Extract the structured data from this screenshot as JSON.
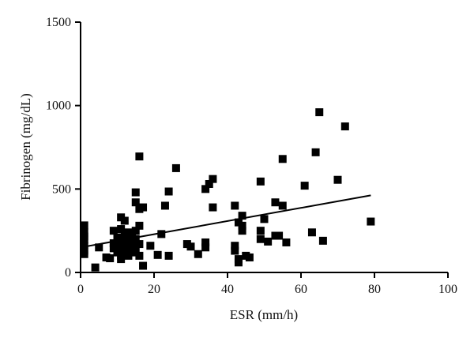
{
  "chart_data": {
    "type": "scatter",
    "title": "",
    "xlabel": "ESR (mm/h)",
    "ylabel": "Fibrinogen (mg/dL)",
    "xlim": [
      0,
      100
    ],
    "ylim": [
      0,
      1500
    ],
    "xticks": [
      0,
      20,
      40,
      60,
      80,
      100
    ],
    "yticks": [
      0,
      500,
      1000,
      1500
    ],
    "xtick_labels": [
      "0",
      "20",
      "40",
      "60",
      "80",
      "100"
    ],
    "ytick_labels": [
      "0",
      "500",
      "1000",
      "1500"
    ],
    "grid": false,
    "legend": "none",
    "marker": "square",
    "color": "#000000",
    "trendline": {
      "x": [
        0,
        79
      ],
      "y": [
        150,
        462
      ]
    },
    "points": [
      [
        1,
        282
      ],
      [
        1,
        240
      ],
      [
        1,
        215
      ],
      [
        1,
        195
      ],
      [
        1,
        160
      ],
      [
        1,
        130
      ],
      [
        1,
        110
      ],
      [
        4,
        30
      ],
      [
        5,
        150
      ],
      [
        7,
        90
      ],
      [
        8,
        85
      ],
      [
        9,
        250
      ],
      [
        9,
        175
      ],
      [
        9,
        145
      ],
      [
        10,
        210
      ],
      [
        10,
        165
      ],
      [
        10,
        120
      ],
      [
        11,
        330
      ],
      [
        11,
        260
      ],
      [
        11,
        200
      ],
      [
        11,
        130
      ],
      [
        11,
        100
      ],
      [
        11,
        80
      ],
      [
        12,
        310
      ],
      [
        12,
        220
      ],
      [
        12,
        180
      ],
      [
        12,
        150
      ],
      [
        12,
        110
      ],
      [
        13,
        240
      ],
      [
        13,
        190
      ],
      [
        13,
        160
      ],
      [
        13,
        140
      ],
      [
        13,
        120
      ],
      [
        13,
        100
      ],
      [
        14,
        210
      ],
      [
        14,
        180
      ],
      [
        14,
        150
      ],
      [
        14,
        120
      ],
      [
        15,
        480
      ],
      [
        15,
        420
      ],
      [
        15,
        250
      ],
      [
        15,
        200
      ],
      [
        15,
        140
      ],
      [
        16,
        695
      ],
      [
        16,
        380
      ],
      [
        16,
        280
      ],
      [
        16,
        170
      ],
      [
        16,
        100
      ],
      [
        17,
        390
      ],
      [
        17,
        40
      ],
      [
        19,
        160
      ],
      [
        21,
        105
      ],
      [
        22,
        230
      ],
      [
        23,
        400
      ],
      [
        24,
        485
      ],
      [
        24,
        100
      ],
      [
        26,
        625
      ],
      [
        29,
        170
      ],
      [
        30,
        155
      ],
      [
        32,
        110
      ],
      [
        34,
        500
      ],
      [
        34,
        180
      ],
      [
        34,
        150
      ],
      [
        35,
        530
      ],
      [
        36,
        560
      ],
      [
        36,
        390
      ],
      [
        42,
        400
      ],
      [
        42,
        160
      ],
      [
        42,
        130
      ],
      [
        43,
        300
      ],
      [
        43,
        80
      ],
      [
        43,
        60
      ],
      [
        44,
        340
      ],
      [
        44,
        280
      ],
      [
        44,
        250
      ],
      [
        45,
        100
      ],
      [
        46,
        90
      ],
      [
        49,
        545
      ],
      [
        49,
        250
      ],
      [
        49,
        200
      ],
      [
        50,
        320
      ],
      [
        51,
        185
      ],
      [
        53,
        420
      ],
      [
        53,
        220
      ],
      [
        54,
        220
      ],
      [
        55,
        680
      ],
      [
        55,
        400
      ],
      [
        56,
        180
      ],
      [
        61,
        520
      ],
      [
        63,
        240
      ],
      [
        64,
        720
      ],
      [
        65,
        960
      ],
      [
        66,
        190
      ],
      [
        70,
        555
      ],
      [
        72,
        875
      ],
      [
        79,
        305
      ]
    ]
  }
}
